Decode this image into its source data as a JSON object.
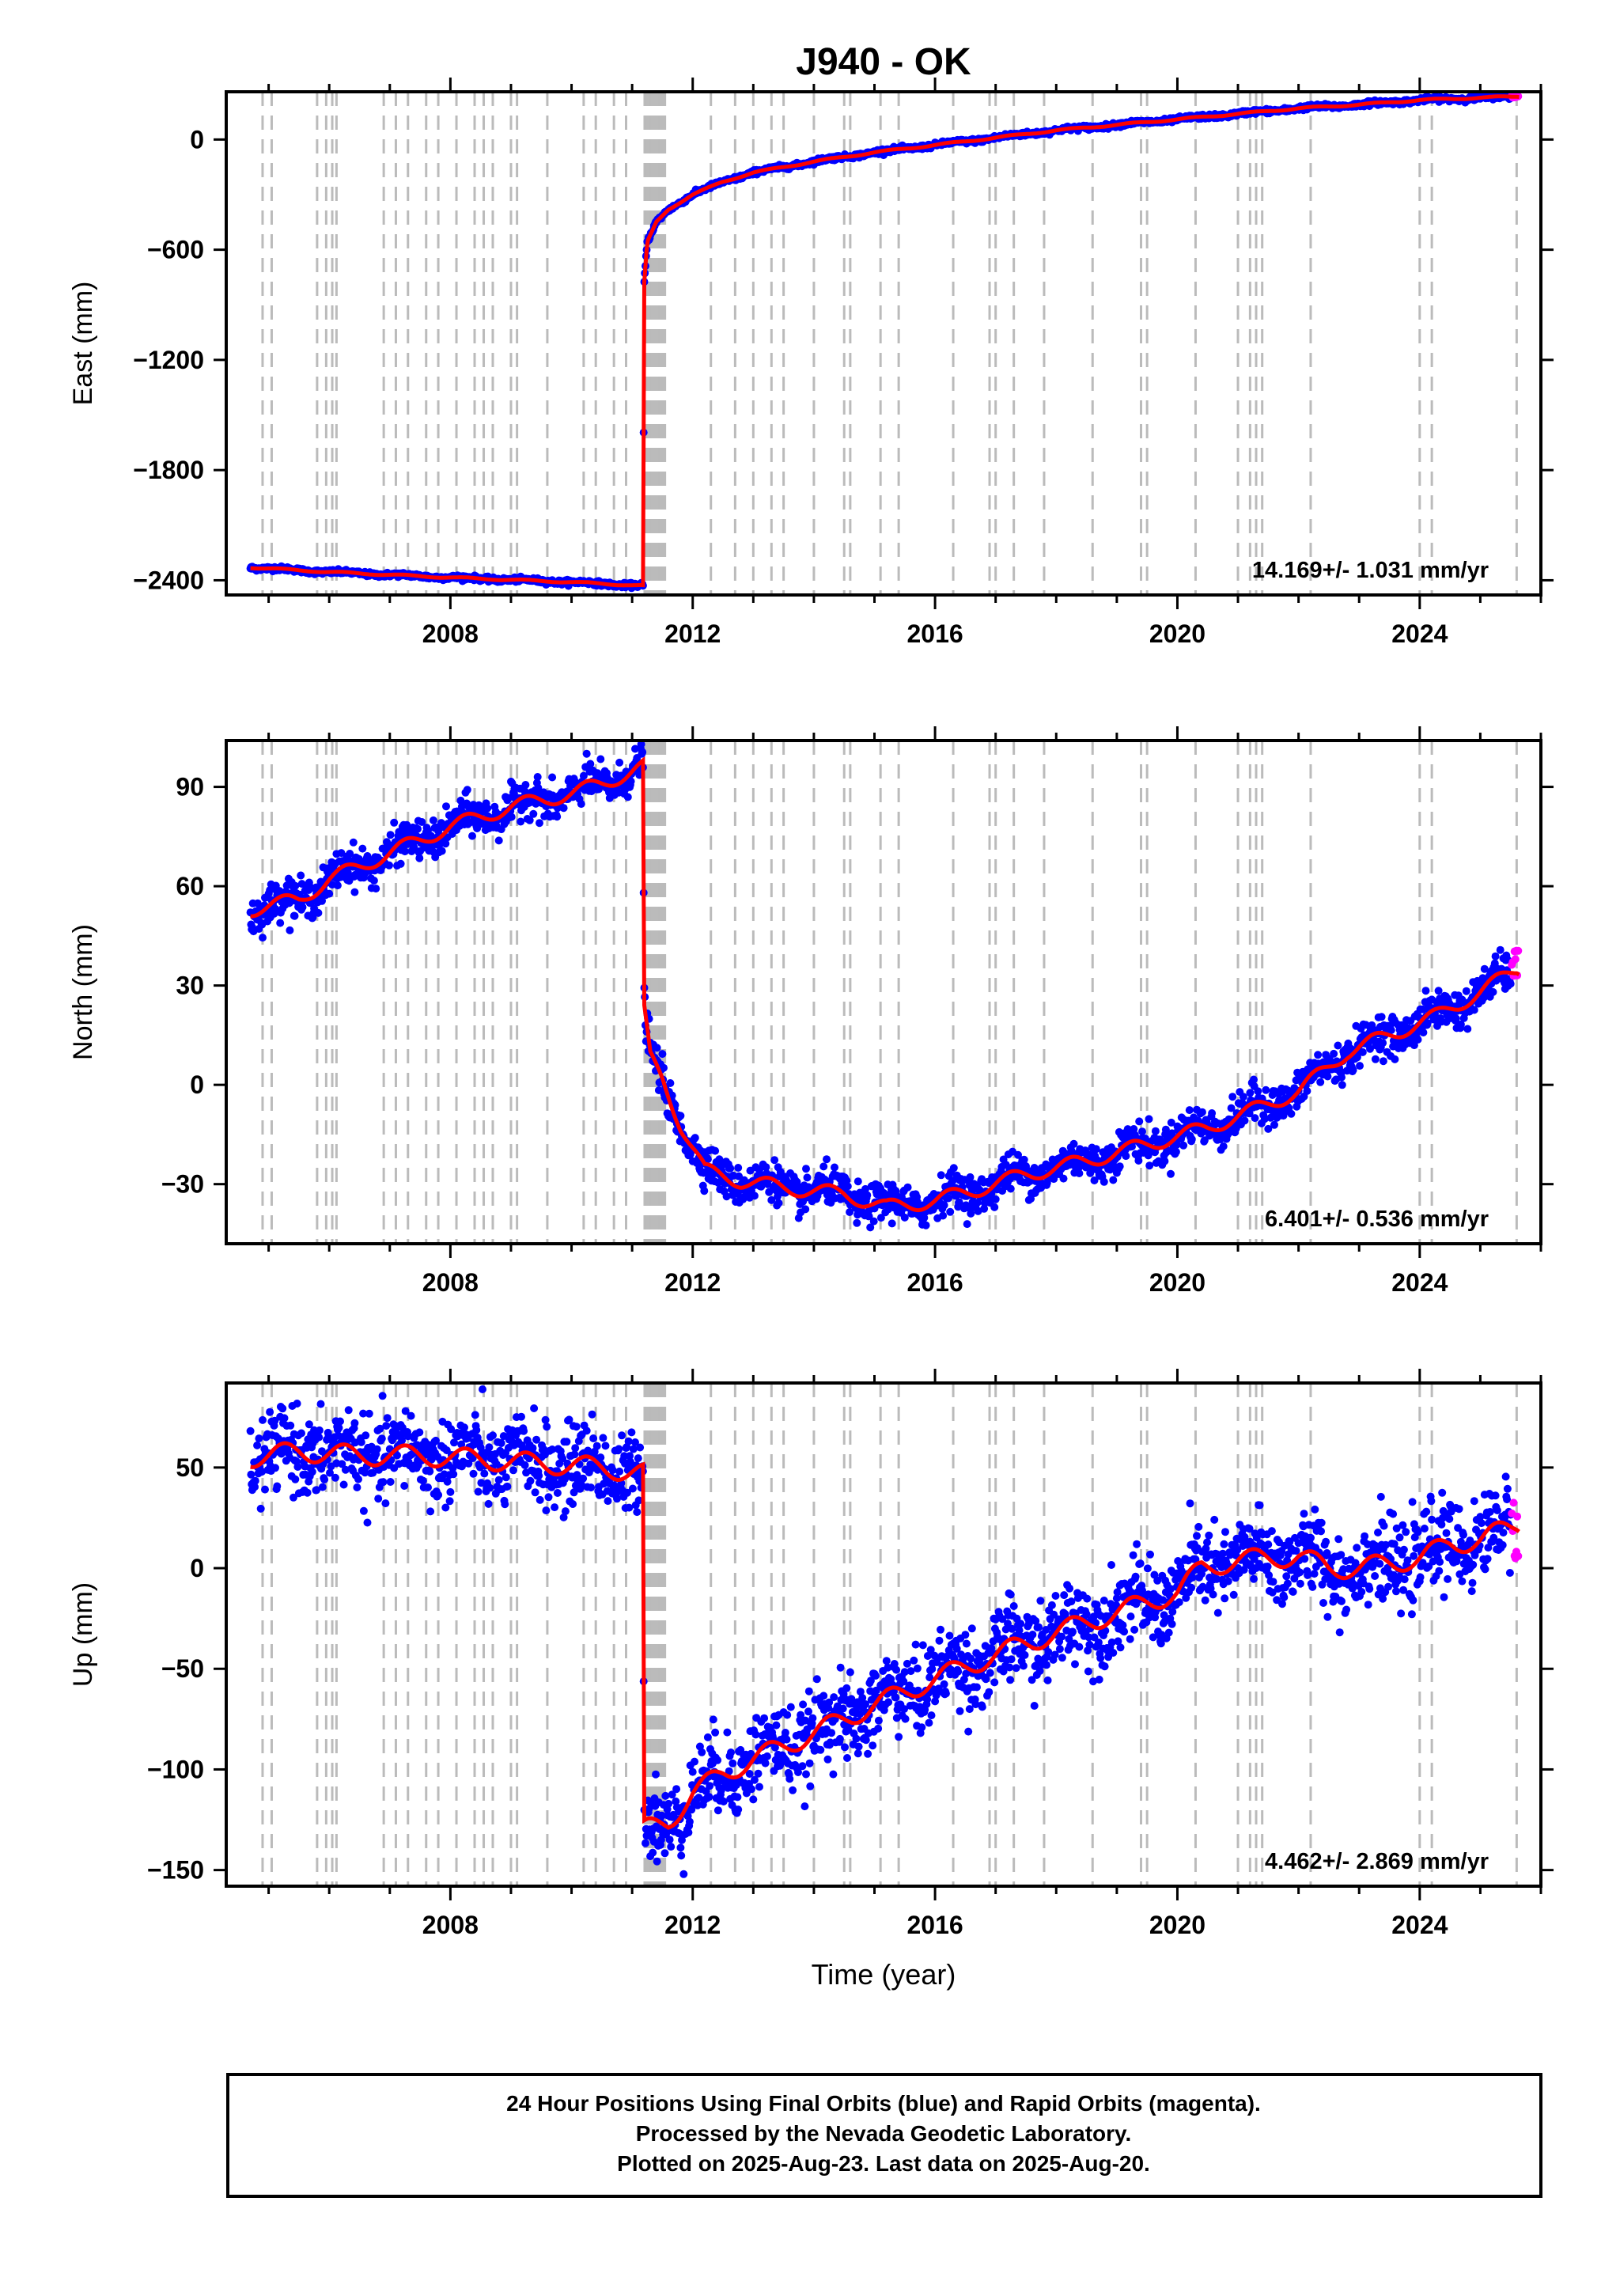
{
  "title": "J940 - OK",
  "footer": {
    "lines": [
      "24 Hour Positions Using Final Orbits (blue) and Rapid Orbits (magenta).",
      "Processed by the Nevada Geodetic Laboratory.",
      "Plotted on 2025-Aug-23. Last data on 2025-Aug-20."
    ]
  },
  "colors": {
    "final_orbits": "#0000ff",
    "rapid_orbits": "#ff00ff",
    "model_fit": "#ff0000",
    "equipment_change_lines": "#bbbbbb"
  },
  "chart_data": [
    {
      "type": "scatter",
      "name": "east",
      "ylabel": "East (mm)",
      "xlabel": "",
      "xlim": [
        2004.3,
        2026.0
      ],
      "ylim": [
        -2480,
        260
      ],
      "xticks": [
        2008,
        2012,
        2016,
        2020,
        2024
      ],
      "yticks": [
        0,
        -600,
        -1200,
        -1800,
        -2400
      ],
      "rate_label": "14.169+/- 1.031 mm/yr",
      "step": {
        "year": 2011.19,
        "before": -2420,
        "after": -780
      },
      "model_fit": {
        "x": [
          2004.7,
          2006,
          2008,
          2010,
          2011.18,
          2011.2,
          2011.25,
          2011.4,
          2011.6,
          2012,
          2012.5,
          2013,
          2014,
          2015,
          2016,
          2017,
          2018,
          2019,
          2020,
          2021,
          2022,
          2023,
          2024,
          2025.6
        ],
        "y": [
          -2330,
          -2355,
          -2385,
          -2410,
          -2430,
          -780,
          -560,
          -450,
          -380,
          -300,
          -230,
          -180,
          -120,
          -70,
          -30,
          10,
          50,
          80,
          110,
          140,
          170,
          190,
          215,
          235
        ]
      }
    },
    {
      "type": "scatter",
      "name": "north",
      "ylabel": "North (mm)",
      "xlabel": "",
      "xlim": [
        2004.3,
        2026.0
      ],
      "ylim": [
        -48,
        104
      ],
      "xticks": [
        2008,
        2012,
        2016,
        2020,
        2024
      ],
      "yticks": [
        90,
        60,
        30,
        0,
        -30
      ],
      "rate_label": "6.401+/- 0.536 mm/yr",
      "step": {
        "year": 2011.19,
        "before": 96,
        "after": 22
      },
      "model_fit": {
        "x": [
          2004.7,
          2005,
          2005.5,
          2006,
          2006.5,
          2007,
          2007.5,
          2008,
          2008.5,
          2009,
          2009.5,
          2010,
          2010.5,
          2011.18,
          2011.2,
          2011.3,
          2011.5,
          2011.8,
          2012.2,
          2012.8,
          2013.5,
          2014.5,
          2015.2,
          2016,
          2016.8,
          2017.5,
          2018.5,
          2019.5,
          2020.5,
          2021.2,
          2022,
          2022.8,
          2023.5,
          2024.3,
          2025,
          2025.6
        ],
        "y": [
          53,
          54,
          56,
          62,
          66,
          70,
          74,
          78,
          81,
          84,
          86,
          88,
          91,
          96,
          22,
          8,
          2,
          -12,
          -26,
          -29,
          -31,
          -33,
          -37,
          -35,
          -31,
          -27,
          -23,
          -18,
          -13,
          -8,
          -2,
          10,
          15,
          21,
          28,
          35
        ]
      }
    },
    {
      "type": "scatter",
      "name": "up",
      "ylabel": "Up (mm)",
      "xlabel": "Time (year)",
      "xlim": [
        2004.3,
        2026.0
      ],
      "ylim": [
        -158,
        92
      ],
      "xticks": [
        2008,
        2012,
        2016,
        2020,
        2024
      ],
      "yticks": [
        50,
        0,
        -50,
        -100,
        -150
      ],
      "rate_label": "4.462+/- 2.869 mm/yr",
      "step": {
        "year": 2011.19,
        "before": 47,
        "after": -130
      },
      "model_fit": {
        "x": [
          2004.7,
          2005.5,
          2006.5,
          2007.5,
          2008.5,
          2009.5,
          2010.5,
          2011.18,
          2011.2,
          2011.6,
          2012,
          2012.5,
          2013,
          2014,
          2015,
          2016,
          2017,
          2018,
          2019,
          2020,
          2020.4,
          2021,
          2022,
          2022.5,
          2023,
          2024,
          2024.5,
          2025,
          2025.6
        ],
        "y": [
          55,
          58,
          56,
          56,
          54,
          52,
          50,
          47,
          -130,
          -126,
          -112,
          -102,
          -95,
          -82,
          -68,
          -55,
          -43,
          -32,
          -22,
          -12,
          0,
          4,
          6,
          0,
          0,
          5,
          12,
          14,
          22
        ]
      }
    }
  ]
}
